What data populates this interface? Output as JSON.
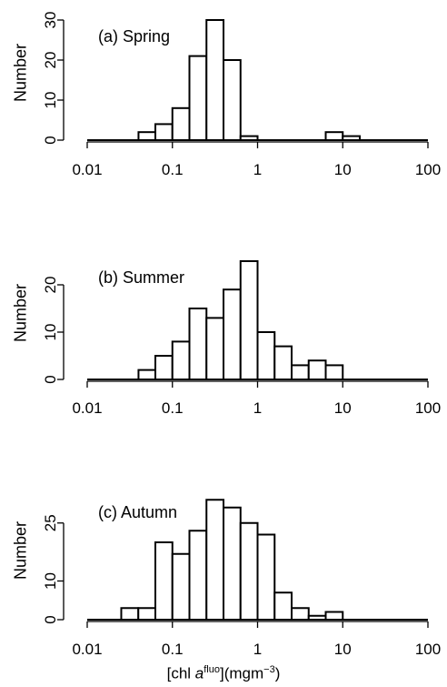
{
  "chart_data": [
    {
      "type": "bar",
      "panel_label": "(a) Spring",
      "xscale": "log",
      "xlim": [
        0.01,
        100
      ],
      "xticks": [
        "0.01",
        "0.1",
        "1",
        "10",
        "100"
      ],
      "ylabel": "Number",
      "ylim": [
        0,
        30
      ],
      "yticks": [
        "0",
        "10",
        "20",
        "30"
      ],
      "bin_edges": [
        0.04,
        0.0631,
        0.1,
        0.1585,
        0.2512,
        0.3981,
        0.631,
        1.0,
        1.585,
        2.512,
        3.981,
        6.31,
        10.0,
        15.85
      ],
      "values": [
        2,
        4,
        8,
        21,
        30,
        20,
        1,
        0,
        0,
        0,
        0,
        2,
        1
      ]
    },
    {
      "type": "bar",
      "panel_label": "(b) Summer",
      "xscale": "log",
      "xlim": [
        0.01,
        100
      ],
      "xticks": [
        "0.01",
        "0.1",
        "1",
        "10",
        "100"
      ],
      "ylabel": "Number",
      "ylim": [
        0,
        25
      ],
      "yticks": [
        "0",
        "10",
        "20"
      ],
      "bin_edges": [
        0.04,
        0.0631,
        0.1,
        0.1585,
        0.2512,
        0.3981,
        0.631,
        1.0,
        1.585,
        2.512,
        3.981,
        6.31,
        10.0
      ],
      "values": [
        2,
        5,
        8,
        15,
        13,
        19,
        25,
        10,
        7,
        3,
        4,
        3
      ]
    },
    {
      "type": "bar",
      "panel_label": "(c) Autumn",
      "xscale": "log",
      "xlim": [
        0.01,
        100
      ],
      "xticks": [
        "0.01",
        "0.1",
        "1",
        "10",
        "100"
      ],
      "ylabel": "Number",
      "ylim": [
        0,
        32
      ],
      "yticks": [
        "0",
        "10",
        "25"
      ],
      "bin_edges": [
        0.0251,
        0.0398,
        0.0631,
        0.1,
        0.1585,
        0.2512,
        0.3981,
        0.631,
        1.0,
        1.585,
        2.512,
        3.981,
        6.31,
        10.0
      ],
      "values": [
        3,
        3,
        20,
        17,
        23,
        31,
        29,
        25,
        22,
        7,
        3,
        1,
        2
      ]
    }
  ],
  "xlabel": {
    "prefix": "[chl ",
    "italic": "a",
    "sup": "fluo",
    "middle": "](mgm",
    "unit_sup": "−3",
    "suffix": ")"
  }
}
